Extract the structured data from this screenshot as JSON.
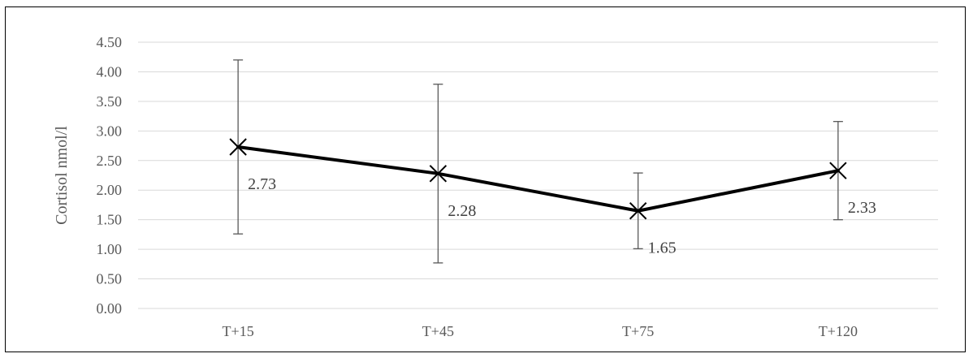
{
  "chart_data": {
    "type": "line",
    "categories": [
      "T+15",
      "T+45",
      "T+75",
      "T+120"
    ],
    "series": [
      {
        "values": [
          2.73,
          2.28,
          1.65,
          2.33
        ],
        "data_labels": [
          "2.73",
          "2.28",
          "1.65",
          "2.33"
        ],
        "error_upper": [
          4.2,
          3.79,
          2.29,
          3.16
        ],
        "error_lower": [
          1.26,
          0.77,
          1.01,
          1.5
        ],
        "color": "#000000",
        "marker": "x"
      }
    ],
    "ylabel": "Cortisol nmol/l",
    "xlabel": "",
    "ylim": [
      0,
      4.5
    ],
    "yticks": [
      "0.00",
      "0.50",
      "1.00",
      "1.50",
      "2.00",
      "2.50",
      "3.00",
      "3.50",
      "4.00",
      "4.50"
    ],
    "grid": true,
    "gridline_color": "#d9d9d9",
    "legend": "none"
  }
}
